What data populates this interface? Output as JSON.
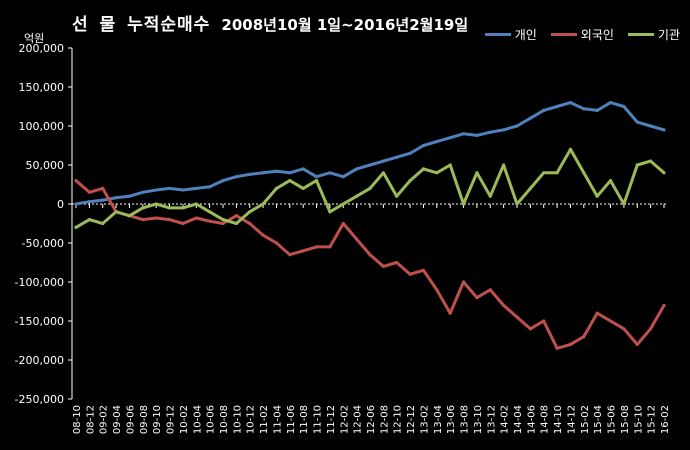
{
  "title_main": "선 물 누적순매수",
  "title_sub": "2008년10월 1일~2016년2월19일",
  "colors": {
    "background": "#000000",
    "text": "#ffffff",
    "grid": "#ffffff"
  },
  "chart_data": {
    "type": "line",
    "title": "선 물 누적순매수 2008년10월 1일~2016년2월19일",
    "ylabel": "억원",
    "xlabel": "",
    "ylim": [
      -250000,
      200000
    ],
    "yticks": [
      200000,
      150000,
      100000,
      50000,
      0,
      -50000,
      -100000,
      -150000,
      -200000,
      -250000
    ],
    "ytick_labels": [
      "200,000",
      "150,000",
      "100,000",
      "50,000",
      "0",
      "-50,000",
      "-100,000",
      "-150,000",
      "-200,000",
      "-250,000"
    ],
    "grid": false,
    "zero_line": "dashed",
    "legend_position": "top-right",
    "x": [
      "08-10",
      "08-12",
      "09-02",
      "09-04",
      "09-06",
      "09-08",
      "09-10",
      "09-12",
      "10-02",
      "10-04",
      "10-06",
      "10-08",
      "10-10",
      "10-12",
      "11-02",
      "11-04",
      "11-06",
      "11-08",
      "11-10",
      "11-12",
      "12-02",
      "12-04",
      "12-06",
      "12-08",
      "12-10",
      "12-12",
      "13-02",
      "13-04",
      "13-06",
      "13-08",
      "13-10",
      "13-12",
      "14-02",
      "14-04",
      "14-06",
      "14-08",
      "14-10",
      "14-12",
      "15-02",
      "15-04",
      "15-06",
      "15-08",
      "15-10",
      "15-12",
      "16-02"
    ],
    "series": [
      {
        "name": "개인",
        "color": "#4f81bd",
        "values": [
          0,
          3000,
          5000,
          8000,
          10000,
          15000,
          18000,
          20000,
          18000,
          20000,
          22000,
          30000,
          35000,
          38000,
          40000,
          42000,
          40000,
          45000,
          35000,
          40000,
          35000,
          45000,
          50000,
          55000,
          60000,
          65000,
          75000,
          80000,
          85000,
          90000,
          88000,
          92000,
          95000,
          100000,
          110000,
          120000,
          125000,
          130000,
          122000,
          120000,
          130000,
          125000,
          105000,
          100000,
          95000
        ]
      },
      {
        "name": "외국인",
        "color": "#c0504d",
        "values": [
          30000,
          15000,
          20000,
          -10000,
          -15000,
          -20000,
          -18000,
          -20000,
          -25000,
          -18000,
          -22000,
          -25000,
          -15000,
          -25000,
          -40000,
          -50000,
          -65000,
          -60000,
          -55000,
          -55000,
          -25000,
          -45000,
          -65000,
          -80000,
          -75000,
          -90000,
          -85000,
          -110000,
          -140000,
          -100000,
          -120000,
          -110000,
          -130000,
          -145000,
          -160000,
          -150000,
          -185000,
          -180000,
          -170000,
          -140000,
          -150000,
          -160000,
          -180000,
          -160000,
          -130000
        ]
      },
      {
        "name": "기관",
        "color": "#9bbb59",
        "values": [
          -30000,
          -20000,
          -25000,
          -10000,
          -15000,
          -5000,
          0,
          -5000,
          -5000,
          0,
          -10000,
          -20000,
          -25000,
          -10000,
          0,
          20000,
          30000,
          20000,
          30000,
          -10000,
          0,
          10000,
          20000,
          40000,
          10000,
          30000,
          45000,
          40000,
          50000,
          0,
          40000,
          10000,
          50000,
          0,
          20000,
          40000,
          40000,
          70000,
          40000,
          10000,
          30000,
          0,
          50000,
          55000,
          40000
        ]
      }
    ]
  }
}
